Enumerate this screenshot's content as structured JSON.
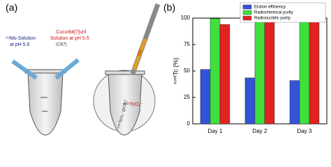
{
  "diagram": {
    "label": "(a)",
    "texts": [
      "⁹⁹Mo Solution",
      "at pH 5.5",
      "Cucurbit[7]uril",
      "Solution at pH 5.5",
      "(CB7)",
      "⁹⁹ᵐTcO₄⁻",
      "CB7",
      "⁹⁹ᵐTcO₄⁻@CB7"
    ]
  },
  "chart_data": {
    "type": "bar",
    "panel_label": "(b)",
    "ylabel": "⁹⁹ᵐTc (%)",
    "categories": [
      "Day 1",
      "Day 2",
      "Day 3"
    ],
    "series": [
      {
        "name": "Elution efficiency",
        "color": "#3553d8",
        "values": [
          51.5,
          43.5,
          41
        ]
      },
      {
        "name": "Radiochemical purity",
        "color": "#3ee03e",
        "values": [
          99.5,
          99.5,
          99.5
        ]
      },
      {
        "name": "Radionuclidic purity",
        "color": "#e32222",
        "values": [
          94,
          97.5,
          97
        ]
      }
    ],
    "ylim": [
      0,
      100
    ],
    "yticks": [
      0,
      25,
      50,
      75,
      100
    ],
    "legend": "upper right"
  }
}
